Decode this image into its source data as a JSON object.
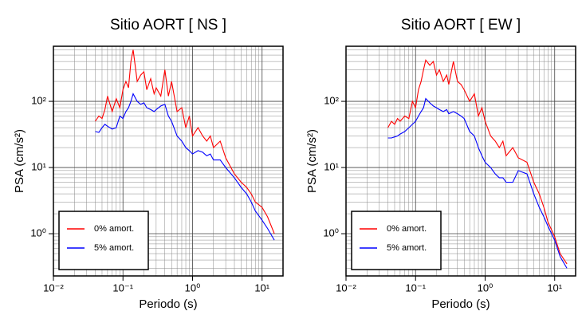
{
  "chart_data": [
    {
      "type": "line",
      "title": "Sitio AORT [ NS ]",
      "xlabel": "Periodo (s)",
      "ylabel": "PSA (cm/s²)",
      "xscale": "log",
      "yscale": "log",
      "grid": true,
      "minor_grid": true,
      "legend": "lower left",
      "xlim": [
        0.01,
        20
      ],
      "ylim": [
        0.23,
        680
      ],
      "xticks": [
        {
          "value": 0.01,
          "label": "10⁻²"
        },
        {
          "value": 0.1,
          "label": "10⁻¹"
        },
        {
          "value": 1,
          "label": "10⁰"
        },
        {
          "value": 10,
          "label": "10¹"
        }
      ],
      "yticks": [
        {
          "value": 1,
          "label": "10⁰"
        },
        {
          "value": 10,
          "label": "10¹"
        },
        {
          "value": 100,
          "label": "10²"
        }
      ],
      "x": [
        0.04,
        0.045,
        0.05,
        0.055,
        0.06,
        0.07,
        0.08,
        0.09,
        0.1,
        0.11,
        0.12,
        0.13,
        0.14,
        0.16,
        0.18,
        0.2,
        0.22,
        0.25,
        0.28,
        0.3,
        0.35,
        0.4,
        0.45,
        0.5,
        0.6,
        0.7,
        0.8,
        0.9,
        1.0,
        1.2,
        1.4,
        1.6,
        1.8,
        2,
        2.5,
        3,
        4,
        5,
        6,
        7,
        8,
        10,
        12,
        15
      ],
      "series": [
        {
          "name": "0% amort.",
          "color": "#ff0000",
          "values": [
            50,
            60,
            55,
            75,
            120,
            70,
            110,
            80,
            150,
            200,
            160,
            400,
            600,
            200,
            250,
            280,
            150,
            220,
            130,
            160,
            120,
            300,
            120,
            200,
            70,
            80,
            40,
            60,
            30,
            40,
            30,
            25,
            30,
            20,
            25,
            14,
            8,
            6,
            5,
            4,
            3,
            2.5,
            1.8,
            1.0
          ]
        },
        {
          "name": "5% amort.",
          "color": "#0000ff",
          "values": [
            35,
            34,
            40,
            45,
            42,
            38,
            40,
            60,
            55,
            70,
            80,
            100,
            130,
            100,
            90,
            95,
            80,
            75,
            70,
            75,
            85,
            90,
            60,
            50,
            30,
            25,
            20,
            18,
            16,
            18,
            17,
            15,
            16,
            13,
            13,
            10,
            7,
            5,
            4,
            3,
            2.2,
            1.6,
            1.2,
            0.8
          ]
        }
      ]
    },
    {
      "type": "line",
      "title": "Sitio AORT [ EW ]",
      "xlabel": "Periodo (s)",
      "ylabel": "PSA (cm/s²)",
      "xscale": "log",
      "yscale": "log",
      "grid": true,
      "minor_grid": true,
      "legend": "lower left",
      "xlim": [
        0.01,
        20
      ],
      "ylim": [
        0.23,
        680
      ],
      "xticks": [
        {
          "value": 0.01,
          "label": "10⁻²"
        },
        {
          "value": 0.1,
          "label": "10⁻¹"
        },
        {
          "value": 1,
          "label": "10⁰"
        },
        {
          "value": 10,
          "label": "10¹"
        }
      ],
      "yticks": [
        {
          "value": 1,
          "label": "10⁰"
        },
        {
          "value": 10,
          "label": "10¹"
        },
        {
          "value": 100,
          "label": "10²"
        }
      ],
      "x": [
        0.04,
        0.045,
        0.05,
        0.055,
        0.06,
        0.07,
        0.08,
        0.09,
        0.1,
        0.11,
        0.12,
        0.13,
        0.14,
        0.16,
        0.18,
        0.2,
        0.22,
        0.25,
        0.28,
        0.3,
        0.35,
        0.4,
        0.45,
        0.5,
        0.6,
        0.7,
        0.8,
        0.9,
        1.0,
        1.2,
        1.4,
        1.6,
        1.8,
        2,
        2.5,
        3,
        4,
        5,
        6,
        7,
        8,
        10,
        12,
        15
      ],
      "series": [
        {
          "name": "0% amort.",
          "color": "#ff0000",
          "values": [
            40,
            50,
            45,
            55,
            50,
            60,
            55,
            100,
            80,
            150,
            200,
            300,
            420,
            350,
            400,
            250,
            300,
            200,
            250,
            180,
            400,
            200,
            180,
            150,
            100,
            130,
            60,
            80,
            50,
            30,
            25,
            20,
            25,
            15,
            20,
            14,
            12,
            6,
            4,
            2.5,
            1.5,
            0.9,
            0.5,
            0.35
          ]
        },
        {
          "name": "5% amort.",
          "color": "#0000ff",
          "values": [
            28,
            28,
            29,
            30,
            32,
            35,
            40,
            45,
            50,
            60,
            70,
            80,
            110,
            95,
            85,
            80,
            75,
            70,
            75,
            65,
            70,
            65,
            60,
            55,
            35,
            30,
            20,
            15,
            12,
            10,
            8,
            7,
            7,
            6,
            6,
            9,
            8,
            4,
            2.5,
            1.8,
            1.3,
            0.8,
            0.45,
            0.3
          ]
        }
      ]
    }
  ]
}
